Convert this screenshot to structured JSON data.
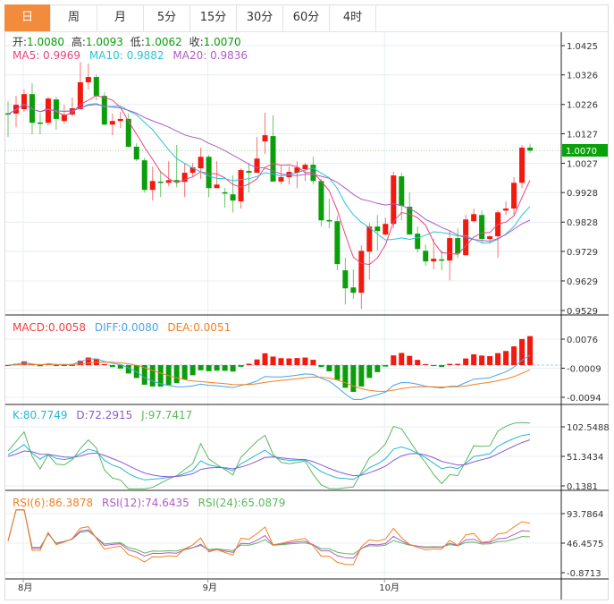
{
  "tabs": [
    {
      "label": "日",
      "active": true
    },
    {
      "label": "周",
      "active": false
    },
    {
      "label": "月",
      "active": false
    },
    {
      "label": "5分",
      "active": false
    },
    {
      "label": "15分",
      "active": false
    },
    {
      "label": "30分",
      "active": false
    },
    {
      "label": "60分",
      "active": false
    },
    {
      "label": "4时",
      "active": false
    }
  ],
  "quote": {
    "open_label": "开:",
    "open": "1.0080",
    "high_label": "高:",
    "high": "1.0093",
    "low_label": "低:",
    "low": "1.0062",
    "close_label": "收:",
    "close": "1.0070"
  },
  "ma_legend": {
    "ma5": "MA5: 0.9969",
    "ma10": "MA10: 0.9882",
    "ma20": "MA20: 0.9836"
  },
  "macd_legend": {
    "macd": "MACD:0.0058",
    "diff": "DIFF:0.0080",
    "dea": "DEA:0.0051"
  },
  "kdj_legend": {
    "k": "K:80.7749",
    "d": "D:72.2915",
    "j": "J:97.7417"
  },
  "rsi_legend": {
    "rsi6": "RSI(6):86.3878",
    "rsi12": "RSI(12):74.6435",
    "rsi24": "RSI(24):65.0879"
  },
  "current_price": "1.0070",
  "colors": {
    "up": "#f2190f",
    "down": "#0b9e0b",
    "accent": "#f28b3c",
    "ma5": "#e8457a",
    "ma10": "#2bc4d8",
    "ma20": "#b05cc9",
    "macd": "#f04040",
    "diff": "#4aa3e8",
    "dea": "#f5801f",
    "k": "#29b6d6",
    "d": "#8a5cd0",
    "j": "#5cb85c",
    "rsi6": "#f5801f",
    "rsi12": "#b05cc9",
    "rsi24": "#5cb85c"
  },
  "chart_data": {
    "type": "candlestick",
    "x_labels": [
      {
        "label": "8月",
        "index": 2
      },
      {
        "label": "9月",
        "index": 25
      },
      {
        "label": "10月",
        "index": 47
      }
    ],
    "price_axis": {
      "ylim": [
        0.9529,
        1.0425
      ],
      "ticks": [
        "1.0425",
        "1.0326",
        "1.0226",
        "1.0127",
        "1.0027",
        "0.9928",
        "0.9828",
        "0.9729",
        "0.9629",
        "0.9529"
      ]
    },
    "macd_axis": {
      "ylim": [
        -0.0094,
        0.0076
      ],
      "ticks": [
        "0.0076",
        "-0.0009",
        "-0.0094"
      ]
    },
    "kdj_axis": {
      "ylim": [
        0.1381,
        102.5488
      ],
      "ticks": [
        "102.5488",
        "51.3434",
        "0.1381"
      ]
    },
    "rsi_axis": {
      "ylim": [
        -0.8713,
        93.7864
      ],
      "ticks": [
        "93.7864",
        "46.4575",
        "-0.8713"
      ]
    },
    "ohlc": [
      [
        1.0196,
        1.0237,
        1.0116,
        1.0193
      ],
      [
        1.0195,
        1.0255,
        1.0149,
        1.0225
      ],
      [
        1.021,
        1.0277,
        1.0201,
        1.0261
      ],
      [
        1.0261,
        1.0298,
        1.0125,
        1.0164
      ],
      [
        1.0165,
        1.0195,
        1.0125,
        1.0164
      ],
      [
        1.0164,
        1.0252,
        1.0155,
        1.0246
      ],
      [
        1.0243,
        1.0252,
        1.014,
        1.0177
      ],
      [
        1.017,
        1.0225,
        1.0161,
        1.0192
      ],
      [
        1.0192,
        1.0249,
        1.0186,
        1.0213
      ],
      [
        1.021,
        1.037,
        1.0207,
        1.0301
      ],
      [
        1.0301,
        1.0364,
        1.0277,
        1.0319
      ],
      [
        1.0319,
        1.0328,
        1.024,
        1.0255
      ],
      [
        1.0255,
        1.0267,
        1.0155,
        1.0158
      ],
      [
        1.0158,
        1.0195,
        1.0122,
        1.017
      ],
      [
        1.017,
        1.0201,
        1.0146,
        1.0177
      ],
      [
        1.0177,
        1.0195,
        1.008,
        1.0083
      ],
      [
        1.0083,
        1.0095,
        1.0034,
        1.004
      ],
      [
        1.0037,
        1.0046,
        0.9928,
        0.9937
      ],
      [
        0.9937,
        1.0016,
        0.9901,
        0.9967
      ],
      [
        0.9965,
        0.9998,
        0.9913,
        0.9964
      ],
      [
        0.9961,
        1.0034,
        0.9949,
        0.997
      ],
      [
        0.997,
        1.0089,
        0.9946,
        0.9964
      ],
      [
        0.9964,
        1.0028,
        0.9913,
        0.9995
      ],
      [
        0.9995,
        1.0028,
        0.9983,
        1.0013
      ],
      [
        1.001,
        1.008,
        0.9974,
        1.0049
      ],
      [
        1.0049,
        1.0055,
        0.9913,
        0.9943
      ],
      [
        0.9943,
        1.0034,
        0.9943,
        0.9955
      ],
      [
        0.9929,
        0.9943,
        0.9877,
        0.9928
      ],
      [
        0.9922,
        0.9986,
        0.9861,
        0.9901
      ],
      [
        0.9898,
        1.001,
        0.9874,
        1.0004
      ],
      [
        1.0001,
        1.0028,
        0.9928,
        0.9995
      ],
      [
        0.9995,
        1.0116,
        0.9995,
        1.0043
      ],
      [
        1.0101,
        1.0198,
        1.0058,
        1.0122
      ],
      [
        1.0119,
        1.0189,
        0.9965,
        0.9965
      ],
      [
        0.9965,
        1.0019,
        0.9955,
        0.998
      ],
      [
        0.998,
        1.0016,
        0.9955,
        0.9998
      ],
      [
        0.9995,
        1.0034,
        0.9943,
        1.0013
      ],
      [
        1.0007,
        1.0028,
        0.9967,
        1.0022
      ],
      [
        1.0022,
        1.0049,
        0.9955,
        0.9967
      ],
      [
        0.9967,
        0.9974,
        0.9813,
        0.9834
      ],
      [
        0.9835,
        0.9907,
        0.9807,
        0.9833
      ],
      [
        0.9831,
        0.9849,
        0.9665,
        0.9686
      ],
      [
        0.9665,
        0.9707,
        0.9549,
        0.9604
      ],
      [
        0.9607,
        0.9668,
        0.9568,
        0.9589
      ],
      [
        0.9589,
        0.9749,
        0.9534,
        0.9731
      ],
      [
        0.9728,
        0.9825,
        0.9634,
        0.9813
      ],
      [
        0.9813,
        0.9852,
        0.9731,
        0.9798
      ],
      [
        0.9786,
        0.9843,
        0.9783,
        0.9822
      ],
      [
        0.9822,
        0.9998,
        0.9807,
        0.9986
      ],
      [
        0.9983,
        0.9995,
        0.9834,
        0.9883
      ],
      [
        0.988,
        0.9928,
        0.9786,
        0.9786
      ],
      [
        0.9789,
        0.9813,
        0.9725,
        0.9737
      ],
      [
        0.9731,
        0.9752,
        0.968,
        0.9695
      ],
      [
        0.9695,
        0.9771,
        0.9668,
        0.9704
      ],
      [
        0.9702,
        0.9731,
        0.9665,
        0.97
      ],
      [
        0.9698,
        0.9801,
        0.9631,
        0.9774
      ],
      [
        0.9774,
        0.9807,
        0.9707,
        0.9722
      ],
      [
        0.9716,
        0.9852,
        0.9716,
        0.9837
      ],
      [
        0.9831,
        0.9874,
        0.9828,
        0.9855
      ],
      [
        0.9852,
        0.9867,
        0.9755,
        0.9771
      ],
      [
        0.9771,
        0.9783,
        0.9755,
        0.978
      ],
      [
        0.978,
        0.9867,
        0.9707,
        0.9861
      ],
      [
        0.9867,
        0.9898,
        0.9852,
        0.9874
      ],
      [
        0.9874,
        0.998,
        0.9852,
        0.9961
      ],
      [
        0.9961,
        1.0089,
        0.9943,
        1.008
      ],
      [
        1.008,
        1.0093,
        1.0062,
        1.007
      ]
    ]
  }
}
